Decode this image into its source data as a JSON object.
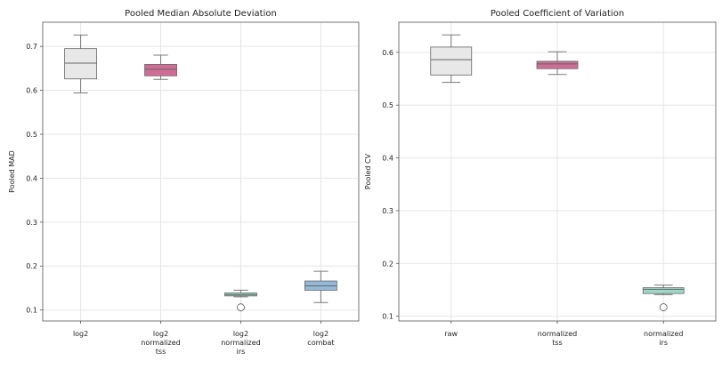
{
  "chart_data": [
    {
      "type": "box",
      "title": "Pooled Median Absolute Deviation",
      "xlabel": "",
      "ylabel": "Pooled MAD",
      "ylim": [
        0.075,
        0.755
      ],
      "yticks": [
        "0.1",
        "0.2",
        "0.3",
        "0.4",
        "0.5",
        "0.6",
        "0.7"
      ],
      "grid": true,
      "categories": [
        [
          "log2"
        ],
        [
          "log2",
          "normalized",
          "tss"
        ],
        [
          "log2",
          "normalized",
          "irs"
        ],
        [
          "log2",
          "combat"
        ]
      ],
      "boxes": [
        {
          "whislo": 0.594,
          "q1": 0.626,
          "med": 0.662,
          "q3": 0.695,
          "whishi": 0.726,
          "fliers": [],
          "color": "#e8e8e8"
        },
        {
          "whislo": 0.625,
          "q1": 0.633,
          "med": 0.648,
          "q3": 0.659,
          "whishi": 0.68,
          "fliers": [],
          "color": "#cf6d97"
        },
        {
          "whislo": 0.13,
          "q1": 0.132,
          "med": 0.135,
          "q3": 0.139,
          "whishi": 0.145,
          "fliers": [
            0.106
          ],
          "color": "#9fd8c8"
        },
        {
          "whislo": 0.117,
          "q1": 0.145,
          "med": 0.155,
          "q3": 0.166,
          "whishi": 0.188,
          "fliers": [],
          "color": "#92b9d9"
        }
      ]
    },
    {
      "type": "box",
      "title": "Pooled Coefficient of Variation",
      "xlabel": "",
      "ylabel": "Pooled CV",
      "ylim": [
        0.091,
        0.657
      ],
      "yticks": [
        "0.1",
        "0.2",
        "0.3",
        "0.4",
        "0.5",
        "0.6"
      ],
      "grid": true,
      "categories": [
        [
          "raw"
        ],
        [
          "normalized",
          "tss"
        ],
        [
          "normalized",
          "irs"
        ]
      ],
      "boxes": [
        {
          "whislo": 0.543,
          "q1": 0.557,
          "med": 0.586,
          "q3": 0.61,
          "whishi": 0.633,
          "fliers": [],
          "color": "#e8e8e8"
        },
        {
          "whislo": 0.558,
          "q1": 0.569,
          "med": 0.578,
          "q3": 0.583,
          "whishi": 0.601,
          "fliers": [],
          "color": "#cf6d97"
        },
        {
          "whislo": 0.141,
          "q1": 0.143,
          "med": 0.151,
          "q3": 0.154,
          "whishi": 0.159,
          "fliers": [
            0.117
          ],
          "color": "#9fd8c8"
        }
      ]
    }
  ]
}
